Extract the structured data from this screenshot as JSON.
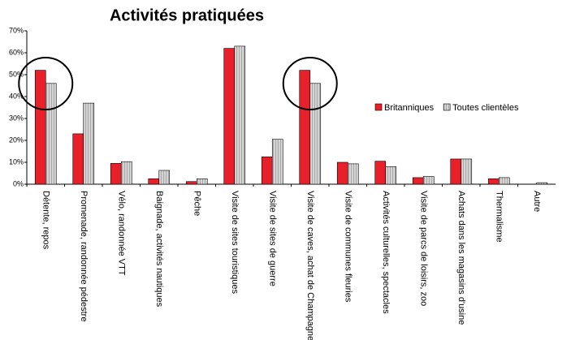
{
  "chart_data": {
    "type": "bar",
    "title": "Activités pratiquées",
    "categories": [
      "Détente, repos",
      "Promenade, randonnée pédestre",
      "Vélo, randonnée VTT",
      "Baignade, activités nautiques",
      "Pêche",
      "Visite de sites touristiques",
      "Visite de sites de guerre",
      "Visite de caves, achat de Champagne",
      "Visite de communes fleuries",
      "Activités culturelles, spectacles",
      "Visite de parcs de loisirs, zoo",
      "Achats dans les magasins d'usine",
      "Thermalisme",
      "Autre"
    ],
    "series": [
      {
        "name": "Britanniques",
        "color": "#e8202a",
        "values": [
          52,
          23,
          9.5,
          2.5,
          1.2,
          62,
          12.5,
          52,
          10,
          10.5,
          3,
          11.5,
          2.5,
          0
        ]
      },
      {
        "name": "Toutes clientèles",
        "color": "#c8c8c8",
        "values": [
          46,
          37,
          10.3,
          6.3,
          2.5,
          63,
          20.5,
          46,
          9.3,
          8,
          3.5,
          11.5,
          3,
          0.7
        ]
      }
    ],
    "ylim": [
      0,
      70
    ],
    "yticks": [
      {
        "value": 0,
        "label": "0%"
      },
      {
        "value": 10,
        "label": "10%"
      },
      {
        "value": 20,
        "label": "20%"
      },
      {
        "value": 30,
        "label": "30%"
      },
      {
        "value": 40,
        "label": "40%"
      },
      {
        "value": 50,
        "label": "50%"
      },
      {
        "value": 60,
        "label": "60%"
      },
      {
        "value": 70,
        "label": "70%"
      }
    ],
    "legend": "right"
  }
}
